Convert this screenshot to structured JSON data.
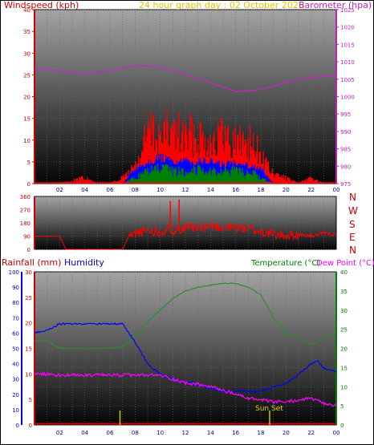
{
  "header": {
    "windspeed_label": "Windspeed (kph)",
    "graph_title": "24 hour graph day : 02 October 2025",
    "barometer_label": "Barometer (hpa)"
  },
  "direction_panel": {
    "compass": [
      "N",
      "W",
      "S",
      "E",
      "N"
    ]
  },
  "lower_header": {
    "rainfall_label": "Rainfall (mm)",
    "humidity_label": "Humidity",
    "temperature_label": "Temperature (°C)",
    "dewpoint_label": "Dew Point (°C)"
  },
  "annotations": {
    "sunset": "Sun Set"
  },
  "colors": {
    "windspeed": "#ff0000",
    "gust": "#ff2020",
    "wind_green": "#008000",
    "wind_blue": "#0000ff",
    "barometer": "#d020d0",
    "direction": "#ff0000",
    "temperature": "#2e8b2e",
    "humidity": "#0000ff",
    "dewpoint": "#ff00ff",
    "rain": "#cc0000",
    "sun": "#c8c800"
  },
  "chart_data": [
    {
      "type": "bar",
      "ylim_left": [
        0,
        40
      ],
      "yticks_left": [
        0,
        5,
        10,
        15,
        20,
        25,
        30,
        35,
        40
      ],
      "ylim_right": [
        975,
        1025
      ],
      "yticks_right": [
        975,
        980,
        985,
        990,
        995,
        1000,
        1005,
        1010,
        1015,
        1020,
        1025
      ],
      "xticks": [
        "02",
        "04",
        "06",
        "08",
        "10",
        "12",
        "14",
        "16",
        "18",
        "20",
        "22",
        "00"
      ],
      "series": [
        {
          "x_hours": [
            0,
            2,
            4,
            5,
            6,
            7,
            8,
            8.5,
            9,
            10,
            11,
            12,
            13,
            14,
            15,
            16,
            17,
            18,
            18.5,
            19,
            20,
            21,
            22,
            23,
            24
          ],
          "values": [
            0,
            0,
            2,
            0,
            0,
            2,
            6,
            10,
            18,
            16,
            18,
            16,
            17,
            15,
            16,
            14,
            15,
            10,
            6,
            3,
            2,
            0,
            2,
            0,
            0
          ]
        },
        {
          "x_hours": [
            0,
            7,
            8,
            9,
            10,
            11,
            12,
            13,
            14,
            15,
            16,
            17,
            18,
            19,
            24
          ],
          "values": [
            0,
            0,
            4,
            6,
            7,
            6,
            6,
            6,
            6,
            5,
            6,
            5,
            4,
            0,
            0
          ]
        },
        {
          "x_hours": [
            0,
            7,
            8,
            9,
            10,
            11,
            12,
            13,
            14,
            15,
            16,
            17,
            18,
            19,
            24
          ],
          "values": [
            0,
            0,
            2,
            4,
            5,
            4,
            4,
            5,
            4,
            4,
            4,
            4,
            2,
            0,
            0
          ]
        },
        {
          "x_hours": [
            0,
            2,
            4,
            6,
            8,
            10,
            12,
            14,
            16,
            18,
            20,
            22,
            24
          ],
          "values": [
            1008,
            1007.5,
            1006.5,
            1007.5,
            1009,
            1008.5,
            1006.5,
            1004,
            1001.5,
            1002,
            1004,
            1005.5,
            1006
          ]
        }
      ]
    },
    {
      "type": "line",
      "ylim": [
        0,
        360
      ],
      "yticks": [
        0,
        90,
        180,
        270,
        360
      ],
      "series": [
        {
          "x_hours": [
            0,
            1,
            2,
            2.5,
            4,
            6,
            7,
            7.5,
            8,
            9,
            10,
            10.8,
            11,
            12,
            13,
            14,
            15,
            16,
            17,
            18,
            19,
            20,
            21,
            22,
            23,
            24
          ],
          "values": [
            90,
            90,
            90,
            0,
            0,
            0,
            0,
            90,
            110,
            130,
            120,
            140,
            130,
            150,
            140,
            160,
            150,
            150,
            140,
            120,
            100,
            95,
            100,
            90,
            110,
            100
          ]
        }
      ]
    },
    {
      "type": "line",
      "ylim_rain": [
        0,
        30
      ],
      "yticks_rain": [
        0,
        5,
        10,
        15,
        20,
        25,
        30
      ],
      "ylim_humidity": [
        0,
        100
      ],
      "yticks_humidity": [
        0,
        10,
        20,
        30,
        40,
        50,
        60,
        70,
        80,
        90,
        100
      ],
      "ylim_temp": [
        0,
        40
      ],
      "yticks_temp": [
        0,
        5,
        10,
        15,
        20,
        25,
        30,
        35,
        40
      ],
      "series": [
        {
          "x_hours": [
            0,
            1,
            2,
            4,
            6,
            7,
            8,
            9,
            10,
            11,
            12,
            13,
            14,
            15,
            16,
            17,
            18,
            19,
            20,
            21,
            22,
            22.5,
            23,
            24
          ],
          "values": [
            22,
            22,
            20,
            20,
            20,
            20.5,
            23,
            27,
            30,
            33,
            35,
            36,
            36.5,
            37,
            37,
            36,
            34,
            28,
            24,
            23,
            21,
            21.5,
            23,
            24
          ]
        },
        {
          "x_hours": [
            0,
            1,
            2,
            4,
            6,
            7,
            8,
            9,
            10,
            11,
            12,
            13,
            14,
            15,
            16,
            17,
            18,
            19,
            20,
            21,
            22,
            22.5,
            23,
            24
          ],
          "values": [
            60,
            62,
            66,
            66,
            66,
            66,
            54,
            40,
            33,
            30,
            28,
            26,
            24,
            22,
            22,
            22,
            22,
            25,
            27,
            33,
            40,
            42,
            37,
            35
          ]
        },
        {
          "x_hours": [
            0,
            2,
            4,
            6,
            7,
            8,
            9,
            10,
            11,
            12,
            13,
            14,
            15,
            16,
            17,
            18,
            19,
            20,
            21,
            22,
            23,
            24
          ],
          "values": [
            13.5,
            13,
            13,
            13,
            13,
            13,
            13,
            13,
            12,
            11,
            10.5,
            10,
            9,
            8,
            7,
            6.5,
            6,
            6,
            6.5,
            7,
            5.5,
            5
          ]
        },
        {
          "x_hours": [
            0,
            24
          ],
          "values": [
            0,
            0
          ]
        }
      ],
      "sun_markers_hours": [
        6.8,
        18.7
      ]
    }
  ]
}
